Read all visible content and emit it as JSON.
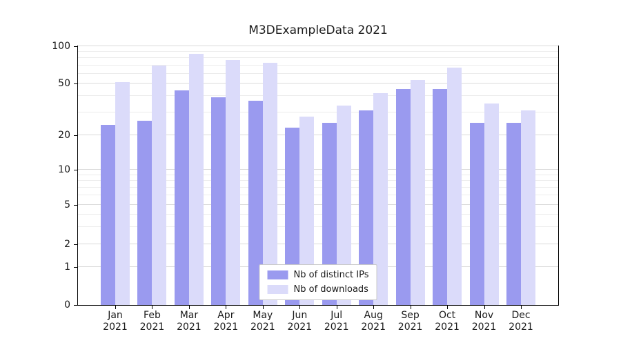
{
  "chart_data": {
    "type": "bar",
    "title": "M3DExampleData 2021",
    "scale": "symlog",
    "categories": [
      "Jan",
      "Feb",
      "Mar",
      "Apr",
      "May",
      "Jun",
      "Jul",
      "Aug",
      "Sep",
      "Oct",
      "Nov",
      "Dec"
    ],
    "year_label": "2021",
    "series": [
      {
        "name": "Nb of distinct IPs",
        "color": "#9a9aef",
        "values": [
          24,
          26,
          44,
          39,
          37,
          23,
          25,
          31,
          45,
          45,
          25,
          25
        ]
      },
      {
        "name": "Nb of downloads",
        "color": "#dbdbfa",
        "values": [
          51,
          70,
          87,
          77,
          73,
          28,
          34,
          42,
          53,
          67,
          35,
          31
        ]
      }
    ],
    "yticks": [
      0,
      1,
      2,
      5,
      10,
      20,
      50,
      100
    ],
    "ylim": [
      0,
      100
    ],
    "grid": true,
    "legend_position": "lower center"
  },
  "colors": {
    "grid_major": "#d9d9d9",
    "grid_minor": "#ececec",
    "axis_frame": "#000000",
    "text": "#1a1a1a",
    "legend_border": "#c9c9c9",
    "legend_background": "#ffffff"
  }
}
